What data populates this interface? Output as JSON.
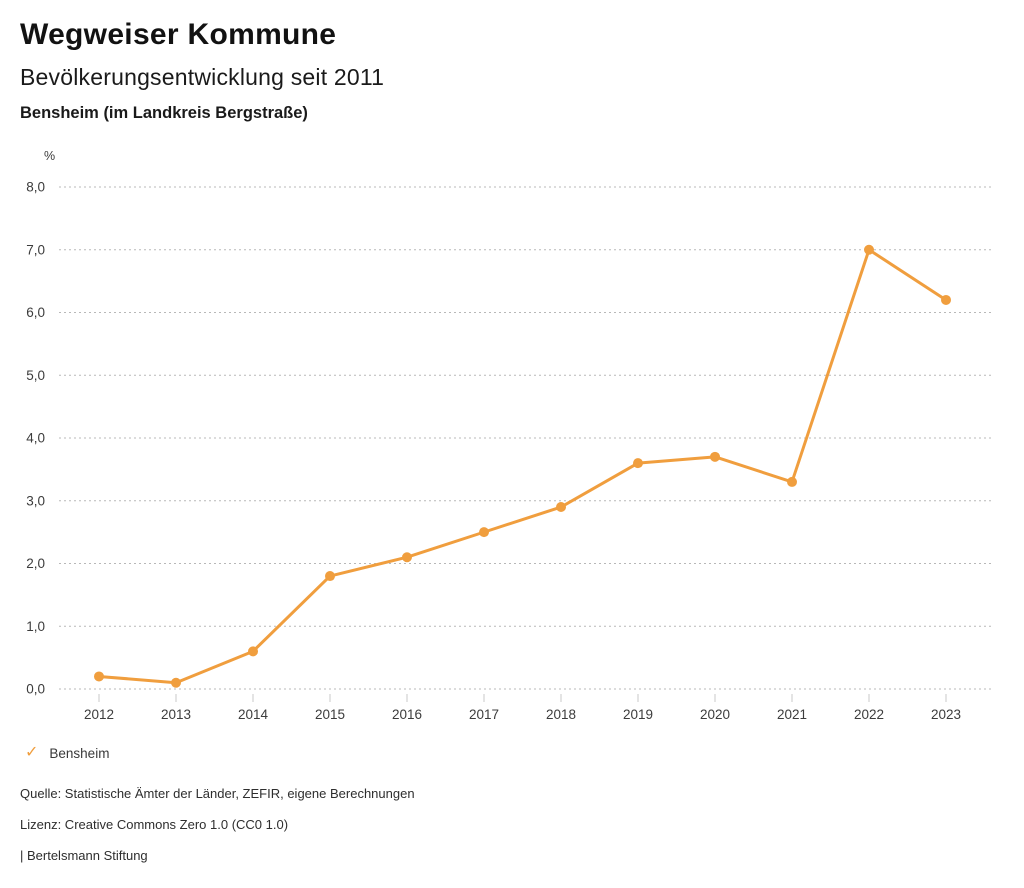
{
  "header": {
    "title": "Wegweiser Kommune",
    "subtitle": "Bevölkerungsentwicklung seit 2011",
    "location": "Bensheim (im Landkreis Bergstraße)"
  },
  "chart_data": {
    "type": "line",
    "x": [
      "2012",
      "2013",
      "2014",
      "2015",
      "2016",
      "2017",
      "2018",
      "2019",
      "2020",
      "2021",
      "2022",
      "2023"
    ],
    "series": [
      {
        "name": "Bensheim",
        "values": [
          0.2,
          0.1,
          0.6,
          1.8,
          2.1,
          2.5,
          2.9,
          3.6,
          3.7,
          3.3,
          7.0,
          6.2
        ]
      }
    ],
    "ylabel": "%",
    "ylim": [
      0,
      8
    ],
    "yticks": [
      0,
      1,
      2,
      3,
      4,
      5,
      6,
      7,
      8
    ],
    "ytick_labels": [
      "0,0",
      "1,0",
      "2,0",
      "3,0",
      "4,0",
      "5,0",
      "6,0",
      "7,0",
      "8,0"
    ],
    "grid": "horizontal-dotted",
    "legend_position": "bottom-left",
    "line_color": "#F09E3E",
    "grid_color": "#b8b8b8",
    "tick_color": "#c9c9c9",
    "axis_text_color": "#3c3c3c"
  },
  "legend": {
    "marker": "check-icon",
    "label": "Bensheim",
    "check_glyph": "✓"
  },
  "footer": {
    "source": "Quelle: Statistische Ämter der Länder, ZEFIR, eigene Berechnungen",
    "license": "Lizenz: Creative Commons Zero 1.0 (CC0 1.0)",
    "attribution": "| Bertelsmann Stiftung"
  }
}
